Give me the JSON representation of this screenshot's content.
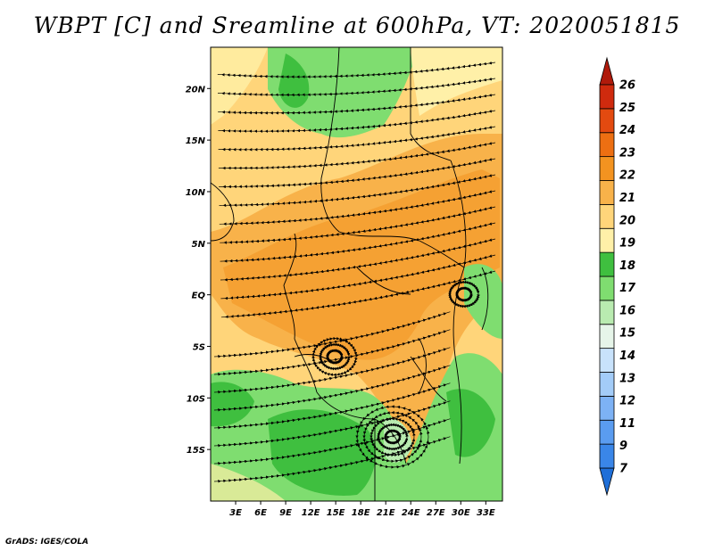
{
  "title": "WBPT [C] and Sreamline at 600hPa, VT: 2020051815",
  "credit": "GrADS: IGES/COLA",
  "map": {
    "lon_ticks": [
      "3E",
      "6E",
      "9E",
      "12E",
      "15E",
      "18E",
      "21E",
      "24E",
      "27E",
      "30E",
      "33E"
    ],
    "lat_ticks": [
      "20N",
      "15N",
      "10N",
      "5N",
      "EQ",
      "5S",
      "10S",
      "15S"
    ],
    "lon_range": [
      0,
      35
    ],
    "lat_range": [
      -20,
      24
    ]
  },
  "colorbar": {
    "levels": [
      "7",
      "9",
      "11",
      "12",
      "13",
      "14",
      "15",
      "16",
      "17",
      "18",
      "19",
      "20",
      "21",
      "22",
      "23",
      "24",
      "25",
      "26"
    ],
    "colors": [
      "#1f6fd8",
      "#3a86e8",
      "#5a9cf0",
      "#7db2f5",
      "#a3ccf8",
      "#c8e2fb",
      "#e6f5e9",
      "#b9ebb0",
      "#7fdd70",
      "#3fbf3f",
      "#fff0a8",
      "#ffd57a",
      "#f8b24a",
      "#f39320",
      "#ed6f12",
      "#e34a10",
      "#cf2a0e",
      "#b01a0b"
    ]
  },
  "legend": {
    "field_colors": {
      "green_dark": "#3fbf3f",
      "green": "#7fdd70",
      "green_light": "#b9ebb0",
      "yellow": "#fff0a8",
      "tan": "#ffd57a",
      "orange_light": "#f8b24a",
      "orange": "#f39320"
    }
  }
}
